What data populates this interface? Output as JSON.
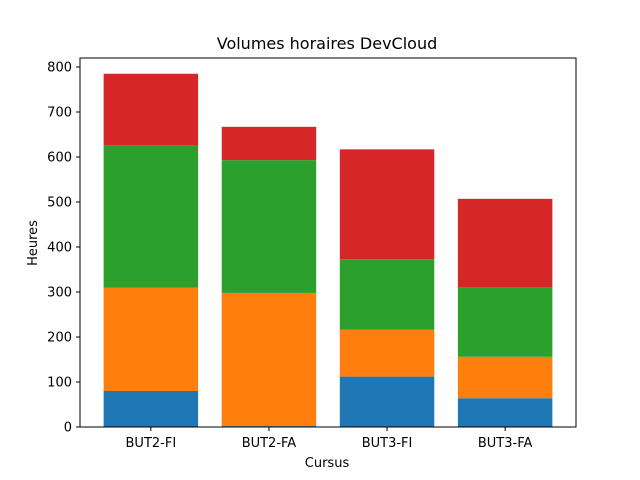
{
  "chart_data": {
    "type": "bar",
    "stacked": true,
    "title": "Volumes horaires DevCloud",
    "xlabel": "Cursus",
    "ylabel": "Heures",
    "categories": [
      "BUT2-FI",
      "BUT2-FA",
      "BUT3-FI",
      "BUT3-FA"
    ],
    "ylim": [
      0,
      820
    ],
    "yticks": [
      0,
      100,
      200,
      300,
      400,
      500,
      600,
      700,
      800
    ],
    "grid": false,
    "series": [
      {
        "color": "#1f77b4",
        "values": [
          80,
          2,
          112,
          64
        ]
      },
      {
        "color": "#ff7f0e",
        "values": [
          230,
          296,
          104,
          92
        ]
      },
      {
        "color": "#2ca02c",
        "values": [
          315,
          295,
          157,
          155
        ]
      },
      {
        "color": "#d62728",
        "values": [
          160,
          74,
          244,
          196
        ]
      }
    ]
  }
}
